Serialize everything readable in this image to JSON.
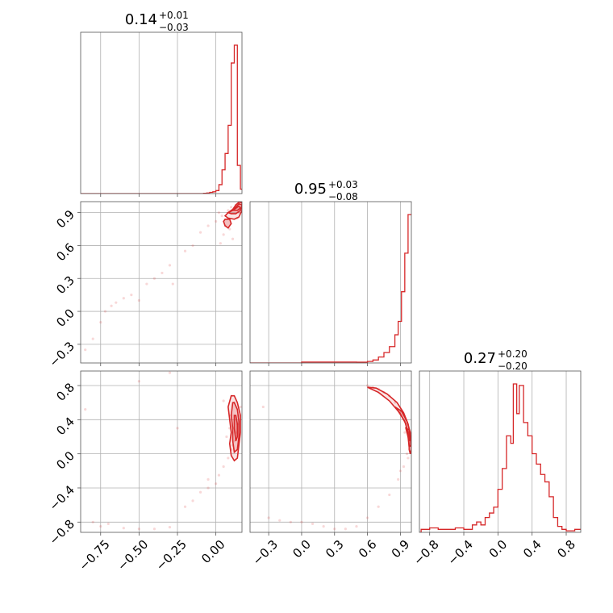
{
  "chart_data": {
    "type": "corner",
    "color": "#d62728",
    "grid": true,
    "parameters": [
      {
        "index": 0,
        "title": {
          "median": "0.14",
          "plus": "+0.01",
          "minus": "−0.03"
        },
        "range": [
          -0.88,
          0.17
        ],
        "ticks": [
          {
            "value": -0.75,
            "label": "−0.75"
          },
          {
            "value": -0.5,
            "label": "−0.50"
          },
          {
            "value": -0.25,
            "label": "−0.25"
          },
          {
            "value": 0.0,
            "label": "0.00"
          }
        ]
      },
      {
        "index": 1,
        "title": {
          "median": "0.95",
          "plus": "+0.03",
          "minus": "−0.08"
        },
        "range": [
          -0.47,
          1.0
        ],
        "ticks": [
          {
            "value": -0.3,
            "label": "−0.3"
          },
          {
            "value": 0.0,
            "label": "0.0"
          },
          {
            "value": 0.3,
            "label": "0.3"
          },
          {
            "value": 0.6,
            "label": "0.6"
          },
          {
            "value": 0.9,
            "label": "0.9"
          }
        ]
      },
      {
        "index": 2,
        "title": {
          "median": "0.27",
          "plus": "+0.20",
          "minus": "−0.20"
        },
        "range": [
          -0.92,
          0.97
        ],
        "ticks": [
          {
            "value": -0.8,
            "label": "−0.8"
          },
          {
            "value": -0.4,
            "label": "−0.4"
          },
          {
            "value": 0.0,
            "label": "0.0"
          },
          {
            "value": 0.4,
            "label": "0.4"
          },
          {
            "value": 0.8,
            "label": "0.8"
          }
        ]
      }
    ],
    "histograms": [
      {
        "param": 0,
        "bins": [
          {
            "x": -0.08,
            "h": 0.002
          },
          {
            "x": -0.06,
            "h": 0.004
          },
          {
            "x": -0.04,
            "h": 0.008
          },
          {
            "x": -0.02,
            "h": 0.012
          },
          {
            "x": 0.0,
            "h": 0.02
          },
          {
            "x": 0.02,
            "h": 0.06
          },
          {
            "x": 0.04,
            "h": 0.16
          },
          {
            "x": 0.06,
            "h": 0.27
          },
          {
            "x": 0.08,
            "h": 0.46
          },
          {
            "x": 0.1,
            "h": 0.88
          },
          {
            "x": 0.12,
            "h": 1.0
          },
          {
            "x": 0.14,
            "h": 0.19
          },
          {
            "x": 0.16,
            "h": 0.03
          }
        ]
      },
      {
        "param": 1,
        "bins": [
          {
            "x": 0.0,
            "h": 0.006
          },
          {
            "x": 0.05,
            "h": 0.006
          },
          {
            "x": 0.5,
            "h": 0.005
          },
          {
            "x": 0.6,
            "h": 0.01
          },
          {
            "x": 0.65,
            "h": 0.02
          },
          {
            "x": 0.7,
            "h": 0.04
          },
          {
            "x": 0.75,
            "h": 0.07
          },
          {
            "x": 0.8,
            "h": 0.11
          },
          {
            "x": 0.85,
            "h": 0.19
          },
          {
            "x": 0.88,
            "h": 0.28
          },
          {
            "x": 0.91,
            "h": 0.48
          },
          {
            "x": 0.94,
            "h": 0.74
          },
          {
            "x": 0.97,
            "h": 1.0
          }
        ]
      },
      {
        "param": 2,
        "bins": [
          {
            "x": -0.9,
            "h": 0.02
          },
          {
            "x": -0.8,
            "h": 0.03
          },
          {
            "x": -0.7,
            "h": 0.02
          },
          {
            "x": -0.6,
            "h": 0.02
          },
          {
            "x": -0.5,
            "h": 0.03
          },
          {
            "x": -0.4,
            "h": 0.02
          },
          {
            "x": -0.3,
            "h": 0.05
          },
          {
            "x": -0.25,
            "h": 0.07
          },
          {
            "x": -0.2,
            "h": 0.05
          },
          {
            "x": -0.15,
            "h": 0.1
          },
          {
            "x": -0.1,
            "h": 0.13
          },
          {
            "x": -0.05,
            "h": 0.17
          },
          {
            "x": 0.0,
            "h": 0.29
          },
          {
            "x": 0.05,
            "h": 0.43
          },
          {
            "x": 0.1,
            "h": 0.65
          },
          {
            "x": 0.15,
            "h": 0.6
          },
          {
            "x": 0.18,
            "h": 1.0
          },
          {
            "x": 0.22,
            "h": 0.8
          },
          {
            "x": 0.25,
            "h": 0.99
          },
          {
            "x": 0.3,
            "h": 0.74
          },
          {
            "x": 0.35,
            "h": 0.65
          },
          {
            "x": 0.4,
            "h": 0.53
          },
          {
            "x": 0.45,
            "h": 0.46
          },
          {
            "x": 0.5,
            "h": 0.39
          },
          {
            "x": 0.55,
            "h": 0.34
          },
          {
            "x": 0.6,
            "h": 0.24
          },
          {
            "x": 0.65,
            "h": 0.1
          },
          {
            "x": 0.7,
            "h": 0.04
          },
          {
            "x": 0.75,
            "h": 0.02
          },
          {
            "x": 0.8,
            "h": 0.01
          },
          {
            "x": 0.9,
            "h": 0.02
          }
        ]
      }
    ],
    "scatter": [
      {
        "x_param": 0,
        "y_param": 1,
        "points": [
          [
            -0.85,
            -0.35
          ],
          [
            -0.8,
            -0.25
          ],
          [
            -0.75,
            -0.1
          ],
          [
            -0.72,
            0.0
          ],
          [
            -0.68,
            0.05
          ],
          [
            -0.65,
            0.08
          ],
          [
            -0.6,
            0.12
          ],
          [
            -0.55,
            0.15
          ],
          [
            -0.5,
            0.1
          ],
          [
            -0.45,
            0.25
          ],
          [
            -0.4,
            0.3
          ],
          [
            -0.35,
            0.35
          ],
          [
            -0.3,
            0.42
          ],
          [
            -0.28,
            0.25
          ],
          [
            -0.2,
            0.55
          ],
          [
            -0.15,
            0.6
          ],
          [
            -0.1,
            0.72
          ],
          [
            -0.05,
            0.78
          ],
          [
            0.0,
            0.82
          ],
          [
            0.02,
            0.9
          ],
          [
            0.04,
            0.87
          ],
          [
            0.05,
            0.7
          ],
          [
            0.06,
            0.78
          ],
          [
            0.08,
            0.92
          ],
          [
            0.1,
            0.95
          ],
          [
            0.12,
            0.93
          ],
          [
            0.13,
            0.97
          ],
          [
            0.14,
            0.85
          ],
          [
            0.15,
            0.9
          ],
          [
            0.16,
            0.95
          ],
          [
            0.03,
            0.62
          ],
          [
            0.09,
            0.75
          ],
          [
            0.11,
            0.66
          ]
        ]
      },
      {
        "x_param": 0,
        "y_param": 2,
        "points": [
          [
            -0.85,
            0.52
          ],
          [
            -0.8,
            -0.8
          ],
          [
            -0.75,
            -0.85
          ],
          [
            -0.7,
            -0.82
          ],
          [
            -0.6,
            -0.87
          ],
          [
            -0.5,
            -0.88
          ],
          [
            -0.4,
            -0.88
          ],
          [
            -0.3,
            -0.86
          ],
          [
            -0.2,
            -0.62
          ],
          [
            -0.15,
            -0.55
          ],
          [
            -0.1,
            -0.45
          ],
          [
            -0.05,
            -0.4
          ],
          [
            0.0,
            -0.35
          ],
          [
            0.02,
            -0.25
          ],
          [
            0.05,
            -0.15
          ],
          [
            0.08,
            -0.05
          ],
          [
            0.1,
            0.05
          ],
          [
            0.12,
            0.15
          ],
          [
            0.13,
            0.25
          ],
          [
            0.14,
            0.35
          ],
          [
            0.15,
            0.45
          ],
          [
            0.16,
            0.55
          ],
          [
            0.12,
            0.6
          ],
          [
            0.1,
            0.45
          ],
          [
            0.09,
            0.3
          ],
          [
            0.11,
            0.1
          ],
          [
            -0.25,
            0.3
          ],
          [
            -0.5,
            0.85
          ],
          [
            -0.3,
            0.95
          ],
          [
            0.05,
            0.62
          ],
          [
            -0.05,
            -0.3
          ],
          [
            0.07,
            0.2
          ]
        ]
      },
      {
        "x_param": 1,
        "y_param": 2,
        "points": [
          [
            -0.3,
            -0.75
          ],
          [
            -0.2,
            -0.78
          ],
          [
            -0.1,
            -0.8
          ],
          [
            0.0,
            -0.8
          ],
          [
            0.1,
            -0.82
          ],
          [
            0.2,
            -0.85
          ],
          [
            0.3,
            -0.88
          ],
          [
            0.4,
            -0.88
          ],
          [
            0.5,
            -0.85
          ],
          [
            0.6,
            -0.75
          ],
          [
            0.7,
            -0.62
          ],
          [
            0.8,
            -0.48
          ],
          [
            0.88,
            -0.3
          ],
          [
            0.93,
            -0.15
          ],
          [
            0.96,
            0.0
          ],
          [
            0.98,
            0.1
          ],
          [
            0.99,
            0.2
          ],
          [
            0.97,
            0.3
          ],
          [
            0.95,
            0.4
          ],
          [
            0.9,
            0.5
          ],
          [
            0.85,
            0.6
          ],
          [
            0.8,
            0.68
          ],
          [
            0.75,
            0.72
          ],
          [
            0.7,
            0.76
          ],
          [
            0.65,
            0.78
          ],
          [
            0.6,
            0.8
          ],
          [
            0.94,
            0.25
          ],
          [
            0.97,
            -0.05
          ],
          [
            0.9,
            -0.2
          ],
          [
            0.99,
            0.05
          ],
          [
            -0.35,
            0.55
          ]
        ]
      }
    ],
    "contours": [
      {
        "x_param": 0,
        "y_param": 1,
        "levels": [
          [
            [
              0.06,
              0.87
            ],
            [
              0.08,
              0.9
            ],
            [
              0.11,
              0.93
            ],
            [
              0.13,
              0.97
            ],
            [
              0.15,
              0.995
            ],
            [
              0.17,
              0.99
            ],
            [
              0.17,
              0.92
            ],
            [
              0.15,
              0.86
            ],
            [
              0.12,
              0.84
            ],
            [
              0.08,
              0.85
            ],
            [
              0.06,
              0.87
            ]
          ],
          [
            [
              0.08,
              0.9
            ],
            [
              0.11,
              0.92
            ],
            [
              0.13,
              0.95
            ],
            [
              0.15,
              0.98
            ],
            [
              0.17,
              0.97
            ],
            [
              0.16,
              0.92
            ],
            [
              0.13,
              0.89
            ],
            [
              0.1,
              0.89
            ],
            [
              0.08,
              0.9
            ]
          ],
          [
            [
              0.11,
              0.92
            ],
            [
              0.13,
              0.94
            ],
            [
              0.15,
              0.96
            ],
            [
              0.16,
              0.94
            ],
            [
              0.14,
              0.92
            ],
            [
              0.11,
              0.92
            ]
          ],
          [
            [
              0.05,
              0.82
            ],
            [
              0.06,
              0.78
            ],
            [
              0.08,
              0.76
            ],
            [
              0.1,
              0.8
            ],
            [
              0.09,
              0.84
            ],
            [
              0.06,
              0.84
            ],
            [
              0.05,
              0.82
            ]
          ]
        ]
      },
      {
        "x_param": 0,
        "y_param": 2,
        "levels": [
          [
            [
              0.1,
              0.68
            ],
            [
              0.08,
              0.55
            ],
            [
              0.09,
              0.4
            ],
            [
              0.1,
              0.25
            ],
            [
              0.09,
              0.12
            ],
            [
              0.1,
              -0.02
            ],
            [
              0.12,
              -0.08
            ],
            [
              0.14,
              -0.05
            ],
            [
              0.15,
              0.1
            ],
            [
              0.16,
              0.25
            ],
            [
              0.16,
              0.45
            ],
            [
              0.14,
              0.6
            ],
            [
              0.12,
              0.68
            ],
            [
              0.1,
              0.68
            ]
          ],
          [
            [
              0.11,
              0.6
            ],
            [
              0.1,
              0.45
            ],
            [
              0.11,
              0.3
            ],
            [
              0.11,
              0.15
            ],
            [
              0.12,
              0.02
            ],
            [
              0.14,
              0.05
            ],
            [
              0.15,
              0.2
            ],
            [
              0.15,
              0.38
            ],
            [
              0.14,
              0.52
            ],
            [
              0.12,
              0.6
            ],
            [
              0.11,
              0.6
            ]
          ],
          [
            [
              0.12,
              0.45
            ],
            [
              0.12,
              0.3
            ],
            [
              0.13,
              0.15
            ],
            [
              0.14,
              0.2
            ],
            [
              0.14,
              0.35
            ],
            [
              0.13,
              0.45
            ],
            [
              0.12,
              0.45
            ]
          ]
        ]
      },
      {
        "x_param": 1,
        "y_param": 2,
        "levels": [
          [
            [
              0.6,
              0.78
            ],
            [
              0.7,
              0.72
            ],
            [
              0.8,
              0.62
            ],
            [
              0.88,
              0.5
            ],
            [
              0.94,
              0.38
            ],
            [
              0.97,
              0.25
            ],
            [
              0.98,
              0.1
            ],
            [
              0.98,
              0.05
            ],
            [
              0.99,
              0.0
            ],
            [
              1.0,
              0.05
            ],
            [
              0.995,
              0.2
            ],
            [
              0.97,
              0.35
            ],
            [
              0.93,
              0.48
            ],
            [
              0.87,
              0.6
            ],
            [
              0.78,
              0.7
            ],
            [
              0.68,
              0.77
            ],
            [
              0.6,
              0.78
            ]
          ],
          [
            [
              0.85,
              0.55
            ],
            [
              0.9,
              0.47
            ],
            [
              0.95,
              0.35
            ],
            [
              0.97,
              0.2
            ],
            [
              0.98,
              0.08
            ],
            [
              0.995,
              0.1
            ],
            [
              0.99,
              0.25
            ],
            [
              0.96,
              0.38
            ],
            [
              0.91,
              0.5
            ],
            [
              0.85,
              0.55
            ]
          ],
          [
            [
              0.95,
              0.3
            ],
            [
              0.97,
              0.2
            ],
            [
              0.985,
              0.15
            ],
            [
              0.98,
              0.28
            ],
            [
              0.95,
              0.3
            ]
          ]
        ]
      }
    ]
  }
}
